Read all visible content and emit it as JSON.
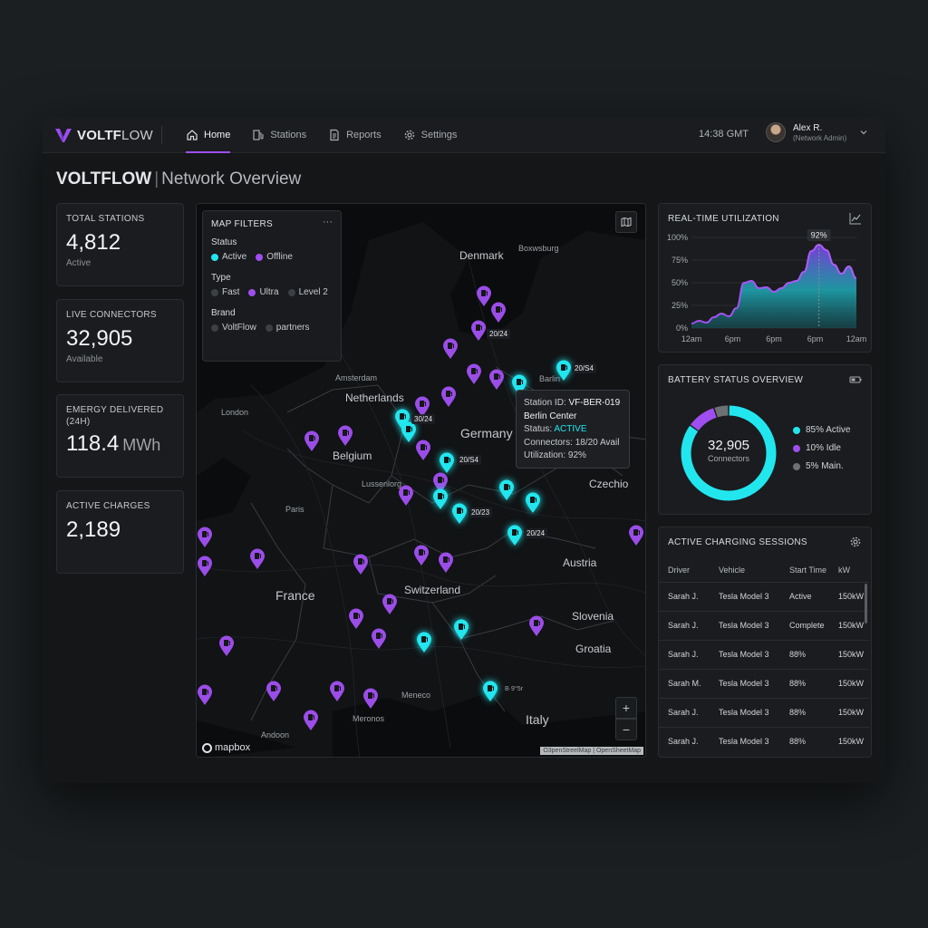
{
  "app": {
    "brand_bold": "VOLTF",
    "brand_rest": "LOW",
    "accent": "#a04ef0",
    "cyan": "#22e6ee"
  },
  "nav": {
    "items": [
      {
        "label": "Home",
        "icon": "home-icon",
        "active": true
      },
      {
        "label": "Stations",
        "icon": "fuel-station-icon",
        "active": false
      },
      {
        "label": "Reports",
        "icon": "document-icon",
        "active": false
      },
      {
        "label": "Settings",
        "icon": "gear-icon",
        "active": false
      }
    ]
  },
  "header": {
    "time": "14:38 GMT",
    "user_name": "Alex R.",
    "user_role": "(Network Admin)"
  },
  "page": {
    "brand": "VOLTFLOW",
    "sep": "|",
    "subtitle": "Network Overview"
  },
  "kpis": [
    {
      "label": "TOTAL STATIONS",
      "value": "4,812",
      "unit": "",
      "sub": "Active"
    },
    {
      "label": "LIVE CONNECTORS",
      "value": "32,905",
      "unit": "",
      "sub": "Available"
    },
    {
      "label": "EMERGY DELIVERED (24H)",
      "value": "118.4",
      "unit": "MWh",
      "sub": ""
    },
    {
      "label": "ACTIVE CHARGES",
      "value": "2,189",
      "unit": "",
      "sub": ""
    }
  ],
  "map": {
    "filters": {
      "title": "MAP FILTERS",
      "more": "···",
      "status_label": "Status",
      "status_options": [
        "Active",
        "Offline"
      ],
      "type_label": "Type",
      "type_options": [
        "Fast",
        "Ultra",
        "Level 2"
      ],
      "brand_label": "Brand",
      "brand_options": [
        "VoltFlow",
        "partners"
      ]
    },
    "labels": {
      "denmark": "Denmark",
      "boxwsburg": "Boxwsburg",
      "amsterdam": "Amsterdam",
      "netherlands": "Netherlands",
      "london": "London",
      "belgium": "Belgium",
      "germany": "Germany",
      "berlin": "Barlin",
      "luxembourg": "Lussenlorg",
      "paris": "Paris",
      "czechio": "Czechio",
      "austria": "Austria",
      "france": "France",
      "switzerland": "Switzerland",
      "slovenia": "Slovenia",
      "croatia": "Groatia",
      "meneco": "Meneco",
      "meronos": "Meronos",
      "andoon": "Andoon",
      "italy": "Italy",
      "near_pin": "B·9°5r"
    },
    "pin_counts": [
      "20/24",
      "20/S4",
      "30/24",
      "20/S4",
      "20/23",
      "20/24"
    ],
    "tooltip": {
      "id_label": "Station ID:",
      "id": "VF-BER-019",
      "name": "Berlin Center",
      "status_label": "Status:",
      "status": "ACTIVE",
      "connectors": "Connectors: 18/20 Avail",
      "utilization": "Utilization: 92%"
    },
    "zoom_in": "+",
    "zoom_out": "−",
    "mapbox": "mapbox",
    "attribution": "O3penStreelMap | OpenSheetMap"
  },
  "utilization": {
    "title": "REAL-TIME UTILIZATION",
    "peak_label": "92%",
    "chart_data": {
      "type": "area",
      "x_ticks": [
        "12am",
        "6pm",
        "6pm",
        "6pm",
        "12am"
      ],
      "y_ticks": [
        "100%",
        "75%",
        "50%",
        "25%",
        "0%"
      ],
      "ylim": [
        0,
        100
      ],
      "values": [
        5,
        8,
        6,
        12,
        16,
        13,
        22,
        50,
        52,
        44,
        45,
        40,
        44,
        50,
        52,
        62,
        85,
        92,
        86,
        70,
        60,
        68,
        55
      ]
    }
  },
  "battery": {
    "title": "BATTERY STATUS OVERVIEW",
    "center_value": "32,905",
    "center_label": "Connectors",
    "chart_data": {
      "type": "pie",
      "slices": [
        {
          "label": "85% Active",
          "value": 85,
          "color": "#22e6ee"
        },
        {
          "label": "10% Idle",
          "value": 10,
          "color": "#a04ef0"
        },
        {
          "label": "5% Main.",
          "value": 5,
          "color": "#6e7174"
        }
      ]
    }
  },
  "sessions": {
    "title": "ACTIVE CHARGING SESSIONS",
    "columns": [
      "Driver",
      "Vehicle",
      "Start Time",
      "kW"
    ],
    "rows": [
      [
        "Sarah J.",
        "Tesla Model 3",
        "Active",
        "150kW"
      ],
      [
        "Sarah J.",
        "Tesla Model 3",
        "Complete",
        "150kW"
      ],
      [
        "Sarah J.",
        "Tesla Model 3",
        "88%",
        "150kW"
      ],
      [
        "Sarah M.",
        "Tesla Model 3",
        "88%",
        "150kW"
      ],
      [
        "Sarah J.",
        "Tesla Model 3",
        "88%",
        "150kW"
      ],
      [
        "Sarah J.",
        "Tesla Model 3",
        "88%",
        "150kW"
      ]
    ]
  }
}
